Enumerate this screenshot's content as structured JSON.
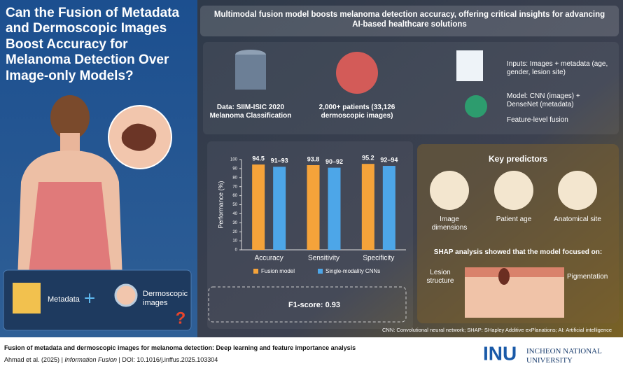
{
  "title": "Can the Fusion of Metadata and Dermoscopic Images Boost Accuracy for Melanoma Detection Over Image-only Models?",
  "left_panel": {
    "metadata": "Metadata",
    "dermoscopic": "Dermoscopic images"
  },
  "header": "Multimodal fusion model boosts melanoma detection accuracy, offering critical insights for advancing AI-based healthcare solutions",
  "overview": {
    "data": "Data: SIIM-ISIC 2020 Melanoma Classification",
    "patients": "2,000+ patients (33,126 dermoscopic images)",
    "inputs": "Inputs: Images + metadata (age, gender, lesion site)",
    "model": "Model: CNN (images) + DenseNet (metadata)",
    "fusion": "Feature-level fusion"
  },
  "chart_data": {
    "type": "bar",
    "y_label": "Performance (%)",
    "categories": [
      "Accuracy",
      "Sensitivity",
      "Specificity"
    ],
    "series": [
      {
        "name": "Fusion model",
        "color": "#f5a33a",
        "values": [
          94.5,
          93.8,
          95.2
        ],
        "value_labels": [
          "94.5",
          "93.8",
          "95.2"
        ]
      },
      {
        "name": "Single-modality CNNs",
        "color": "#4da6e8",
        "values": [
          92,
          91,
          93
        ],
        "value_labels": [
          "91–93",
          "90–92",
          "92–94"
        ]
      }
    ],
    "ylim": [
      0,
      100
    ],
    "yticks": [
      0,
      10,
      20,
      30,
      40,
      50,
      60,
      70,
      80,
      90,
      100
    ]
  },
  "f1": "F1-score: 0.93",
  "predictors": {
    "title": "Key predictors",
    "items": [
      "Image dimensions",
      "Patient age",
      "Anatomical site"
    ],
    "shap": "SHAP analysis showed that the model focused on:",
    "labels": [
      "Lesion structure",
      "Pigmentation"
    ]
  },
  "abbreviations": "CNN: Convolutional neural network; SHAP: SHapley Additive exPlanations; AI: Artificial intelligence",
  "footer": {
    "title": "Fusion of metadata and dermoscopic images for melanoma detection: Deep learning and feature importance analysis",
    "authors": "Ahmad et al. (2025)",
    "sep": "|",
    "journal": "Information Fusion",
    "doi": "DOI: 10.1016/j.inffus.2025.103304",
    "logo": "INU",
    "university": "INCHEON NATIONAL UNIVERSITY"
  }
}
